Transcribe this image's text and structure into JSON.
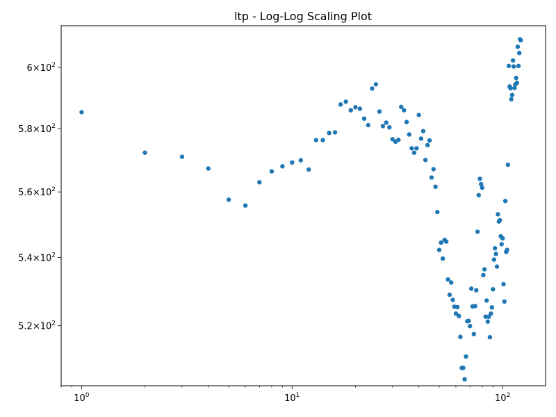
{
  "chart_data": {
    "type": "scatter",
    "title": "ltp  - Log-Log Scaling Plot",
    "xlabel": "",
    "ylabel": "",
    "x_scale": "log",
    "y_scale": "log",
    "xlim": [
      0.8,
      160
    ],
    "ylim": [
      503,
      614
    ],
    "grid": false,
    "point_color": "#1f77b4",
    "x_ticks": [
      {
        "value": 1,
        "label": "10^0"
      },
      {
        "value": 10,
        "label": "10^1"
      },
      {
        "value": 100,
        "label": "10^2"
      }
    ],
    "y_ticks": [
      {
        "value": 520,
        "label": "5.2×10^2"
      },
      {
        "value": 540,
        "label": "5.4×10^2"
      },
      {
        "value": 560,
        "label": "5.6×10^2"
      },
      {
        "value": 580,
        "label": "5.8×10^2"
      },
      {
        "value": 600,
        "label": "6×10^2"
      }
    ],
    "x": [
      1,
      2,
      3,
      4,
      5,
      6,
      7,
      8,
      9,
      10,
      11,
      12,
      13,
      14,
      15,
      16,
      17,
      18,
      19,
      20,
      21,
      22,
      23,
      24,
      25,
      26,
      27,
      28,
      29,
      30,
      31,
      32,
      33,
      34,
      35,
      36,
      37,
      38,
      39,
      40,
      41,
      42,
      43,
      44,
      45,
      46,
      47,
      48,
      49,
      50,
      51,
      52,
      53,
      54,
      55,
      56,
      57,
      58,
      59,
      60,
      61,
      62,
      63,
      64,
      65,
      66,
      67,
      68,
      69,
      70,
      71,
      72,
      73,
      74,
      75,
      76,
      77,
      78,
      79,
      80,
      81,
      82,
      83,
      84,
      85,
      86,
      87,
      88,
      89,
      90,
      91,
      92,
      93,
      94,
      95,
      96,
      97,
      98,
      99,
      100,
      101,
      102,
      103,
      104,
      105,
      106,
      107,
      108,
      109,
      110,
      111,
      112,
      113,
      114,
      115,
      116,
      117,
      118,
      119,
      120,
      121,
      122
    ],
    "y": [
      585.3,
      572.3,
      571.0,
      567.3,
      557.6,
      555.8,
      563.0,
      566.4,
      568.0,
      569.2,
      569.9,
      567.0,
      576.3,
      576.3,
      578.6,
      578.8,
      587.8,
      588.7,
      585.9,
      586.9,
      586.4,
      583.2,
      581.1,
      593.0,
      594.4,
      585.5,
      580.8,
      581.9,
      580.4,
      576.6,
      575.8,
      576.4,
      587.0,
      585.9,
      582.1,
      578.1,
      573.7,
      572.3,
      573.7,
      584.4,
      576.8,
      579.2,
      570.0,
      574.7,
      576.2,
      564.5,
      567.1,
      561.6,
      553.8,
      542.3,
      544.5,
      539.7,
      545.3,
      544.8,
      533.5,
      529.0,
      532.6,
      527.5,
      525.5,
      523.5,
      525.4,
      522.8,
      516.8,
      508.0,
      508.0,
      504.8,
      511.2,
      521.3,
      521.4,
      519.9,
      530.8,
      525.6,
      517.6,
      525.7,
      530.3,
      547.8,
      559.0,
      564.1,
      562.4,
      561.3,
      534.8,
      536.5,
      522.6,
      527.3,
      521.2,
      522.6,
      516.7,
      523.5,
      525.3,
      530.6,
      539.4,
      542.8,
      541.1,
      537.3,
      553.1,
      550.9,
      551.3,
      546.4,
      544.0,
      545.8,
      532.1,
      527.0,
      557.2,
      541.7,
      542.3,
      568.5,
      600.5,
      593.7,
      593.1,
      589.5,
      590.9,
      602.3,
      600.3,
      593.2,
      594.4,
      596.5,
      594.9,
      606.9,
      600.5,
      604.8,
      609.4,
      609.1
    ]
  }
}
